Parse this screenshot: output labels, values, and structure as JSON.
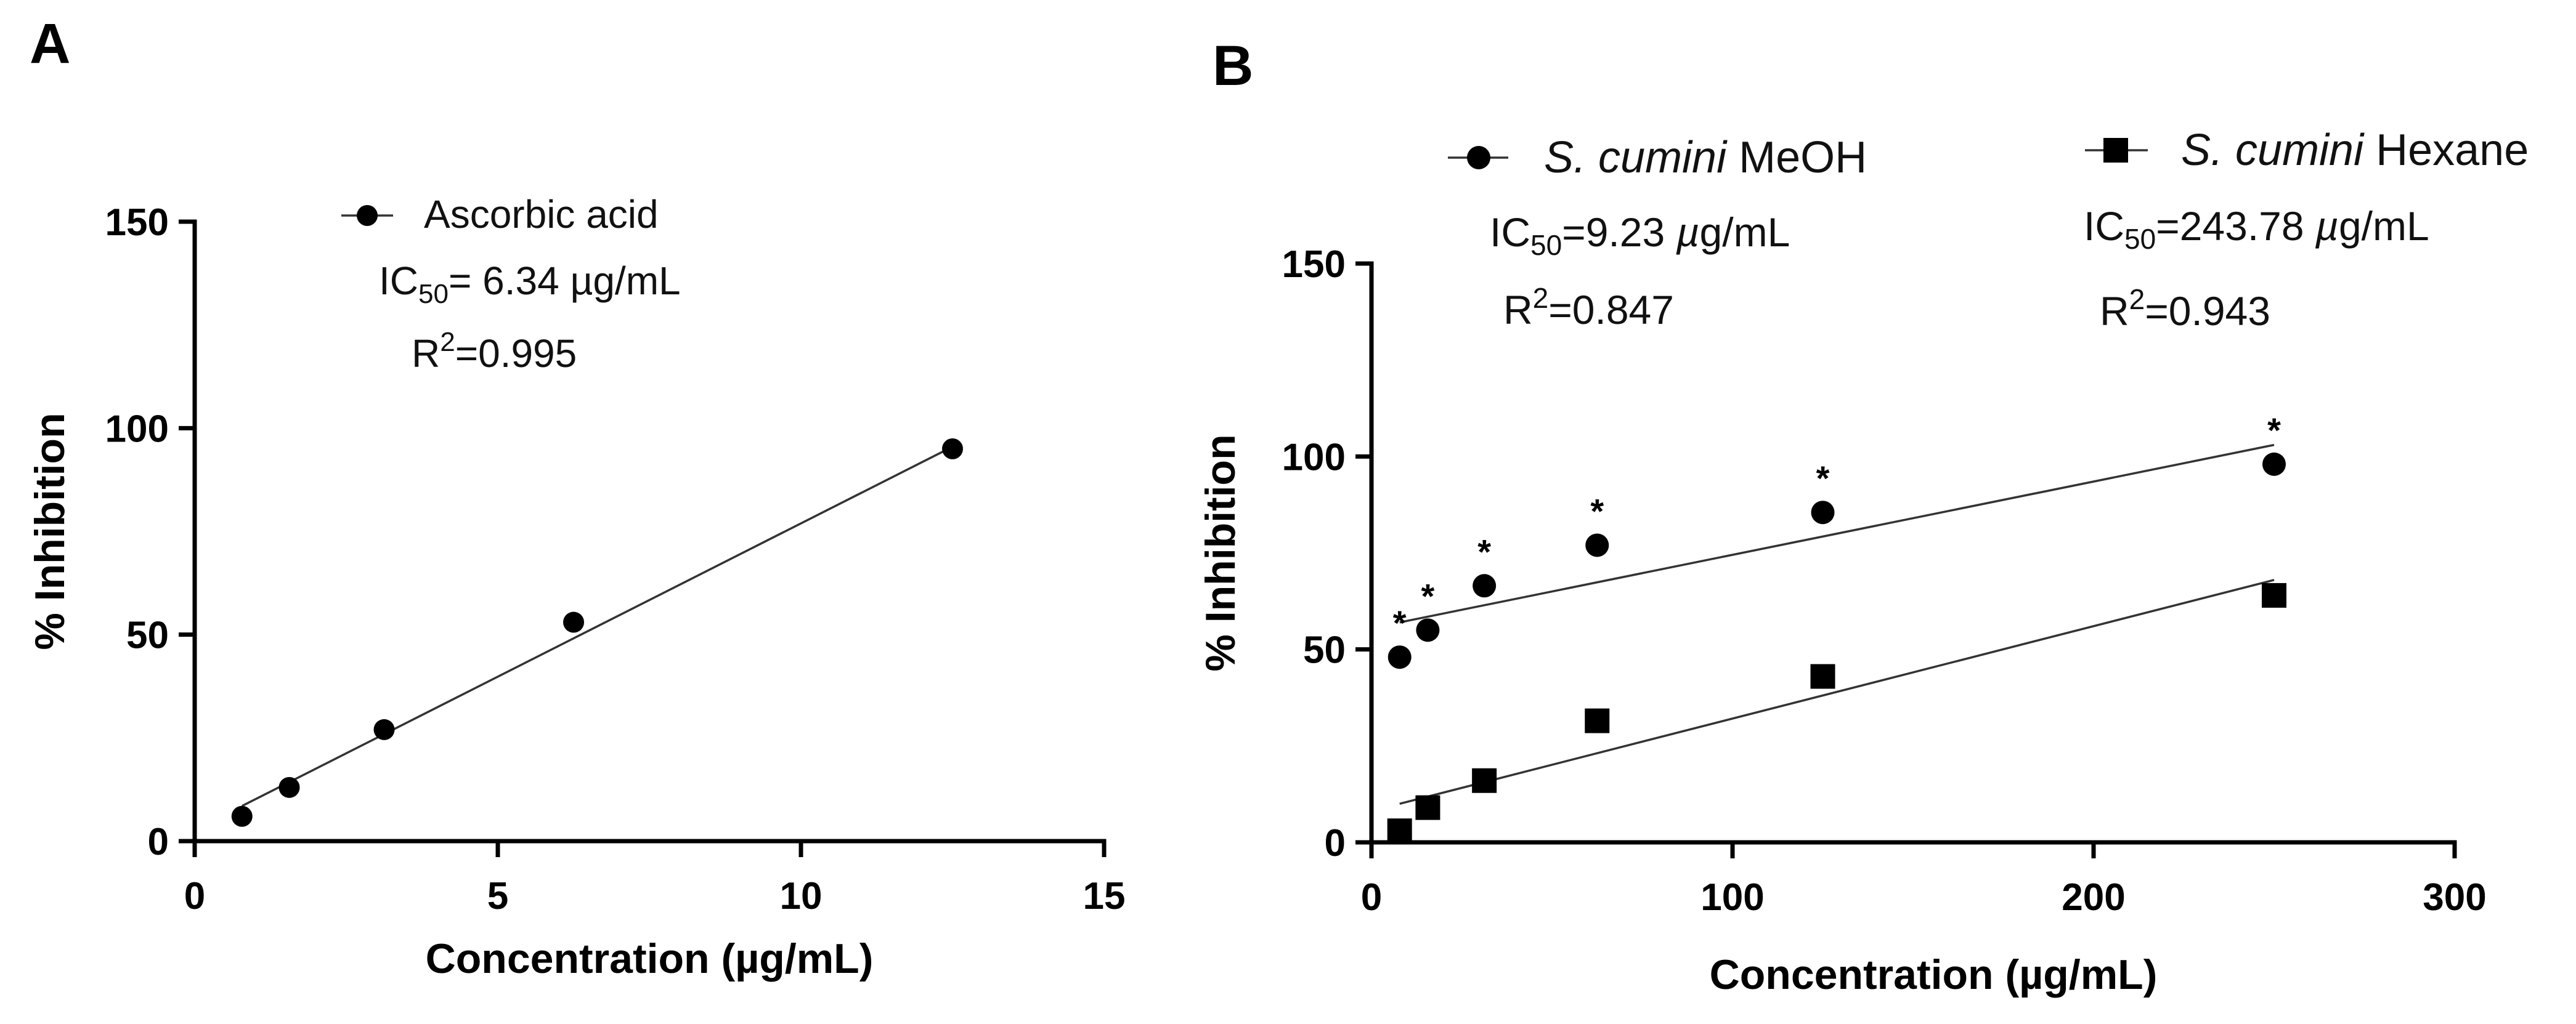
{
  "chart_data": [
    {
      "panel": "A",
      "type": "scatter",
      "xlabel": "Concentration (µg/mL)",
      "ylabel": "% Inhibition",
      "xlim": [
        0,
        15
      ],
      "ylim": [
        0,
        150
      ],
      "xticks": [
        0,
        5,
        10,
        15
      ],
      "yticks": [
        0,
        50,
        100,
        150
      ],
      "series": [
        {
          "name": "Ascorbic acid",
          "marker": "circle",
          "x": [
            0.78,
            1.56,
            3.125,
            6.25,
            12.5
          ],
          "y": [
            6,
            13,
            27,
            53,
            95
          ],
          "fit": {
            "x": [
              0.78,
              12.5
            ],
            "y": [
              8.5,
              95.5
            ]
          }
        }
      ],
      "annotations": {
        "ic50_prefix": "IC",
        "ic50_sub": "50",
        "ic50_value": "= 6.34 µg/mL",
        "r2_prefix": "R",
        "r2_sup": "2",
        "r2_value": "=0.995"
      }
    },
    {
      "panel": "B",
      "type": "scatter",
      "xlabel": "Concentration (µg/mL)",
      "ylabel": "% Inhibition",
      "xlim": [
        0,
        300
      ],
      "ylim": [
        0,
        150
      ],
      "xticks": [
        0,
        100,
        200,
        300
      ],
      "yticks": [
        0,
        50,
        100,
        150
      ],
      "series": [
        {
          "name_italic": "S. cumini",
          "name_rest": " MeOH",
          "marker": "circle",
          "x": [
            7.8,
            15.6,
            31.25,
            62.5,
            125,
            250
          ],
          "y": [
            48,
            55,
            66.5,
            77,
            85.5,
            98
          ],
          "significance": [
            "*",
            "*",
            "*",
            "*",
            "*",
            "*"
          ],
          "fit": {
            "x": [
              7.8,
              250
            ],
            "y": [
              57,
              103
            ]
          },
          "ic50_prefix": "IC",
          "ic50_sub": "50",
          "ic50_value": "=9.23 ",
          "ic50_unit_mu": "µ",
          "ic50_unit_rest": "g/mL",
          "r2_prefix": "R",
          "r2_sup": "2",
          "r2_value": "=0.847"
        },
        {
          "name_italic": "S. cumini",
          "name_rest": " Hexane",
          "marker": "square",
          "x": [
            7.8,
            15.6,
            31.25,
            62.5,
            125,
            250
          ],
          "y": [
            3,
            9,
            16,
            31.5,
            43,
            64
          ],
          "fit": {
            "x": [
              7.8,
              250
            ],
            "y": [
              10,
              68
            ]
          },
          "ic50_prefix": "IC",
          "ic50_sub": "50",
          "ic50_value": "=243.78 ",
          "ic50_unit_mu": "µ",
          "ic50_unit_rest": "g/mL",
          "r2_prefix": "R",
          "r2_sup": "2",
          "r2_value": "=0.943"
        }
      ]
    }
  ]
}
